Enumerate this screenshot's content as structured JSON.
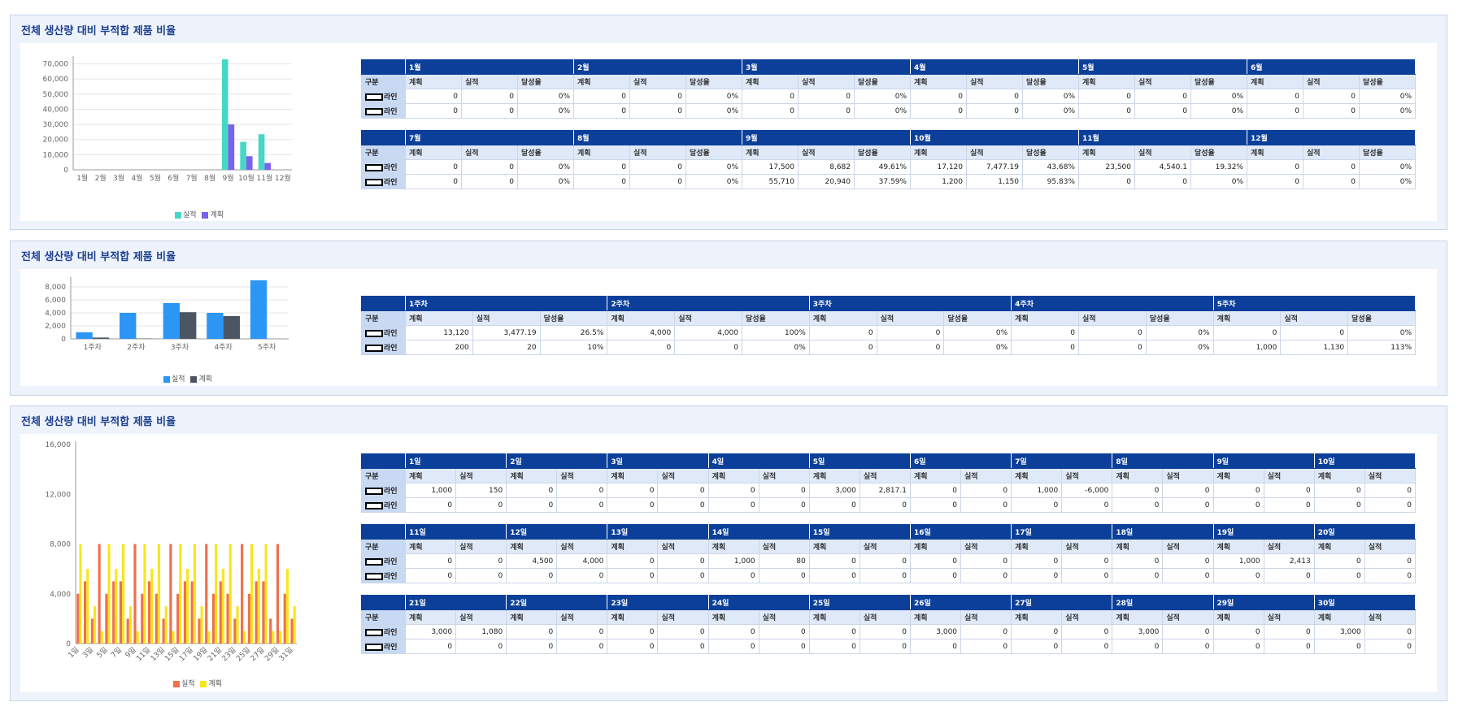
{
  "sections": [
    {
      "title": "전체 생산량 대비 부적합 제품 비율",
      "chart_data": {
        "type": "bar",
        "categories": [
          "1월",
          "2월",
          "3월",
          "4월",
          "5월",
          "6월",
          "7월",
          "8월",
          "9월",
          "10월",
          "11월",
          "12월"
        ],
        "series": [
          {
            "name": "실적",
            "color": "#47d7c7",
            "values": [
              0,
              0,
              0,
              0,
              0,
              0,
              0,
              0,
              73000,
              18500,
              23500,
              0
            ]
          },
          {
            "name": "계획",
            "color": "#7b61ee",
            "values": [
              0,
              0,
              0,
              0,
              0,
              0,
              0,
              0,
              30000,
              9000,
              4500,
              0
            ]
          }
        ],
        "yticks": [
          "0",
          "10,000",
          "20,000",
          "30,000",
          "40,000",
          "50,000",
          "60,000",
          "70,000"
        ],
        "ylim": [
          0,
          73000
        ],
        "grid": true,
        "legend": "bottom"
      },
      "tables": [
        {
          "corner": "구분",
          "periods": [
            "1월",
            "2월",
            "3월",
            "4월",
            "5월",
            "6월"
          ],
          "subheaders": [
            "계획",
            "실적",
            "달성율"
          ],
          "rows": [
            {
              "label": "라인",
              "values": [
                "0",
                "0",
                "0%",
                "0",
                "0",
                "0%",
                "0",
                "0",
                "0%",
                "0",
                "0",
                "0%",
                "0",
                "0",
                "0%",
                "0",
                "0",
                "0%"
              ]
            },
            {
              "label": "라인",
              "values": [
                "0",
                "0",
                "0%",
                "0",
                "0",
                "0%",
                "0",
                "0",
                "0%",
                "0",
                "0",
                "0%",
                "0",
                "0",
                "0%",
                "0",
                "0",
                "0%"
              ]
            }
          ]
        },
        {
          "corner": "구분",
          "periods": [
            "7월",
            "8월",
            "9월",
            "10월",
            "11월",
            "12월"
          ],
          "subheaders": [
            "계획",
            "실적",
            "달성율"
          ],
          "rows": [
            {
              "label": "라인",
              "values": [
                "0",
                "0",
                "0%",
                "0",
                "0",
                "0%",
                "17,500",
                "8,682",
                "49.61%",
                "17,120",
                "7,477.19",
                "43.68%",
                "23,500",
                "4,540.1",
                "19.32%",
                "0",
                "0",
                "0%"
              ]
            },
            {
              "label": "라인",
              "values": [
                "0",
                "0",
                "0%",
                "0",
                "0",
                "0%",
                "55,710",
                "20,940",
                "37.59%",
                "1,200",
                "1,150",
                "95.83%",
                "0",
                "0",
                "0%",
                "0",
                "0",
                "0%"
              ]
            }
          ]
        }
      ]
    },
    {
      "title": "전체 생산량 대비 부적합 제품 비율",
      "chart_data": {
        "type": "bar",
        "categories": [
          "1주차",
          "2주차",
          "3주차",
          "4주차",
          "5주차"
        ],
        "series": [
          {
            "name": "실적",
            "color": "#2c96f5",
            "values": [
              1000,
              4000,
              5500,
              4000,
              9000
            ]
          },
          {
            "name": "계획",
            "color": "#4b5563",
            "values": [
              200,
              50,
              4100,
              3500,
              0
            ]
          }
        ],
        "yticks": [
          "0",
          "2,000",
          "4,000",
          "6,000",
          "8,000"
        ],
        "ylim": [
          0,
          9000
        ],
        "grid": true,
        "legend": "bottom"
      },
      "tables": [
        {
          "corner": "구분",
          "periods": [
            "1주차",
            "2주차",
            "3주차",
            "4주차",
            "5주차"
          ],
          "subheaders": [
            "계획",
            "실적",
            "달성율"
          ],
          "rows": [
            {
              "label": "라인",
              "values": [
                "13,120",
                "3,477.19",
                "26.5%",
                "4,000",
                "4,000",
                "100%",
                "0",
                "0",
                "0%",
                "0",
                "0",
                "0%",
                "0",
                "0",
                "0%"
              ]
            },
            {
              "label": "라인",
              "values": [
                "200",
                "20",
                "10%",
                "0",
                "0",
                "0%",
                "0",
                "0",
                "0%",
                "0",
                "0",
                "0%",
                "1,000",
                "1,130",
                "113%"
              ]
            }
          ]
        }
      ]
    },
    {
      "title": "전체 생산량 대비 부적합 제품 비율",
      "chart_data": {
        "type": "bar",
        "categories": [
          "1일",
          "2일",
          "3일",
          "4일",
          "5일",
          "6일",
          "7일",
          "8일",
          "9일",
          "10일",
          "11일",
          "12일",
          "13일",
          "14일",
          "15일",
          "16일",
          "17일",
          "18일",
          "19일",
          "20일",
          "21일",
          "22일",
          "23일",
          "24일",
          "25일",
          "26일",
          "27일",
          "28일",
          "29일",
          "30일",
          "31일"
        ],
        "xtick_labels": [
          "1일",
          "3일",
          "5일",
          "7일",
          "9일",
          "11일",
          "13일",
          "15일",
          "17일",
          "19일",
          "21일",
          "23일",
          "25일",
          "27일",
          "29일",
          "31일"
        ],
        "series": [
          {
            "name": "실적",
            "color": "#f0704c",
            "values": [
              4000,
              5000,
              2000,
              8000,
              4000,
              5000,
              5000,
              2000,
              8000,
              4000,
              5000,
              4000,
              2000,
              8000,
              4000,
              5000,
              5000,
              2000,
              8000,
              4000,
              5000,
              4000,
              2000,
              8000,
              4000,
              5000,
              5000,
              2000,
              8000,
              4000,
              2000
            ]
          },
          {
            "name": "계획",
            "color": "#f8e61c",
            "values": [
              8000,
              6000,
              3000,
              1000,
              8000,
              6000,
              8000,
              3000,
              1000,
              8000,
              6000,
              8000,
              3000,
              1000,
              8000,
              6000,
              8000,
              3000,
              1000,
              8000,
              6000,
              8000,
              3000,
              1000,
              8000,
              6000,
              8000,
              1000,
              1000,
              6000,
              3000
            ]
          }
        ],
        "yticks": [
          "0",
          "4,000",
          "8,000",
          "12,000",
          "16,000"
        ],
        "ylim": [
          0,
          16000
        ],
        "grid": false,
        "legend": "bottom"
      },
      "tables": [
        {
          "corner": "구분",
          "periods": [
            "1일",
            "2일",
            "3일",
            "4일",
            "5일",
            "6일",
            "7일",
            "8일",
            "9일",
            "10일"
          ],
          "subheaders": [
            "계획",
            "실적"
          ],
          "rows": [
            {
              "label": "라인",
              "values": [
                "1,000",
                "150",
                "0",
                "0",
                "0",
                "0",
                "0",
                "0",
                "3,000",
                "2,817.1",
                "0",
                "0",
                "1,000",
                "-6,000",
                "0",
                "0",
                "0",
                "0",
                "0",
                "0"
              ]
            },
            {
              "label": "라인",
              "values": [
                "0",
                "0",
                "0",
                "0",
                "0",
                "0",
                "0",
                "0",
                "0",
                "0",
                "0",
                "0",
                "0",
                "0",
                "0",
                "0",
                "0",
                "0",
                "0",
                "0"
              ]
            }
          ]
        },
        {
          "corner": "구분",
          "periods": [
            "11일",
            "12일",
            "13일",
            "14일",
            "15일",
            "16일",
            "17일",
            "18일",
            "19일",
            "20일"
          ],
          "subheaders": [
            "계획",
            "실적"
          ],
          "rows": [
            {
              "label": "라인",
              "values": [
                "0",
                "0",
                "4,500",
                "4,000",
                "0",
                "0",
                "1,000",
                "80",
                "0",
                "0",
                "0",
                "0",
                "0",
                "0",
                "0",
                "0",
                "1,000",
                "2,413",
                "0",
                "0"
              ]
            },
            {
              "label": "라인",
              "values": [
                "0",
                "0",
                "0",
                "0",
                "0",
                "0",
                "0",
                "0",
                "0",
                "0",
                "0",
                "0",
                "0",
                "0",
                "0",
                "0",
                "0",
                "0",
                "0",
                "0"
              ]
            }
          ]
        },
        {
          "corner": "구분",
          "periods": [
            "21일",
            "22일",
            "23일",
            "24일",
            "25일",
            "26일",
            "27일",
            "28일",
            "29일",
            "30일"
          ],
          "subheaders": [
            "계획",
            "실적"
          ],
          "rows": [
            {
              "label": "라인",
              "values": [
                "3,000",
                "1,080",
                "0",
                "0",
                "0",
                "0",
                "0",
                "0",
                "0",
                "0",
                "3,000",
                "0",
                "0",
                "0",
                "3,000",
                "0",
                "0",
                "0",
                "3,000",
                "0"
              ]
            },
            {
              "label": "라인",
              "values": [
                "0",
                "0",
                "0",
                "0",
                "0",
                "0",
                "0",
                "0",
                "0",
                "0",
                "0",
                "0",
                "0",
                "0",
                "0",
                "0",
                "0",
                "0",
                "0",
                "0"
              ]
            }
          ]
        }
      ]
    }
  ]
}
